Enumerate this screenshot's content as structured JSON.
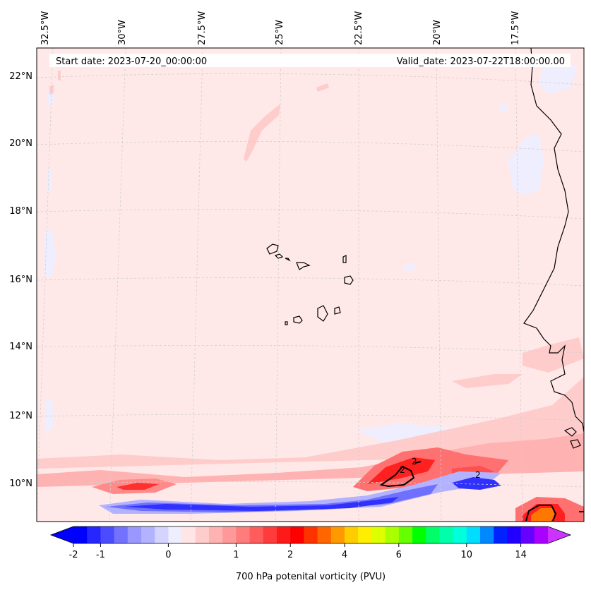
{
  "header": {
    "start_label": "Start date: 2023-07-20_00:00:00",
    "valid_label": "Valid_date: 2023-07-22T18:00:00.00"
  },
  "lon_labels": [
    "32.5°W",
    "30°W",
    "27.5°W",
    "25°W",
    "22.5°W",
    "20°W",
    "17.5°W"
  ],
  "lat_labels": [
    "22°N",
    "20°N",
    "18°N",
    "16°N",
    "14°N",
    "12°N",
    "10°N"
  ],
  "contour_labels": [
    "2",
    "2",
    "2"
  ],
  "colorbar": {
    "title": "700 hPa potenital vorticity (PVU)",
    "ticks": [
      "-2",
      "-1",
      "0",
      "1",
      "2",
      "4",
      "6",
      "10",
      "14"
    ],
    "colors": [
      "#0000ff",
      "#2626ff",
      "#4c4cff",
      "#7272ff",
      "#9898ff",
      "#b2b2ff",
      "#d4d4ff",
      "#eeeeff",
      "#ffe5e5",
      "#ffcccc",
      "#ffb2b2",
      "#ff9898",
      "#ff7c7c",
      "#ff5c5c",
      "#ff3b3b",
      "#ff1a1a",
      "#ff0000",
      "#ff3300",
      "#ff6600",
      "#ff9900",
      "#ffcc00",
      "#ffee00",
      "#ddff00",
      "#aaff00",
      "#66ff00",
      "#00ff00",
      "#00ff66",
      "#00ffaa",
      "#00ffdd",
      "#00ddff",
      "#0088ff",
      "#0022ff",
      "#2200ff",
      "#6600ff",
      "#aa00ff"
    ],
    "under_color": "#0000ff",
    "over_color": "#cc33ff"
  },
  "field_colors": {
    "background": "#ffe8e8",
    "light_blue": "#eeeeff",
    "pink": "#ffcccc",
    "pink2": "#ffb2b2",
    "red_mid": "#ff7070",
    "red": "#ff2020",
    "deep_blue": "#3030ff",
    "mid_blue": "#7070ff",
    "orange": "#ff7700"
  }
}
